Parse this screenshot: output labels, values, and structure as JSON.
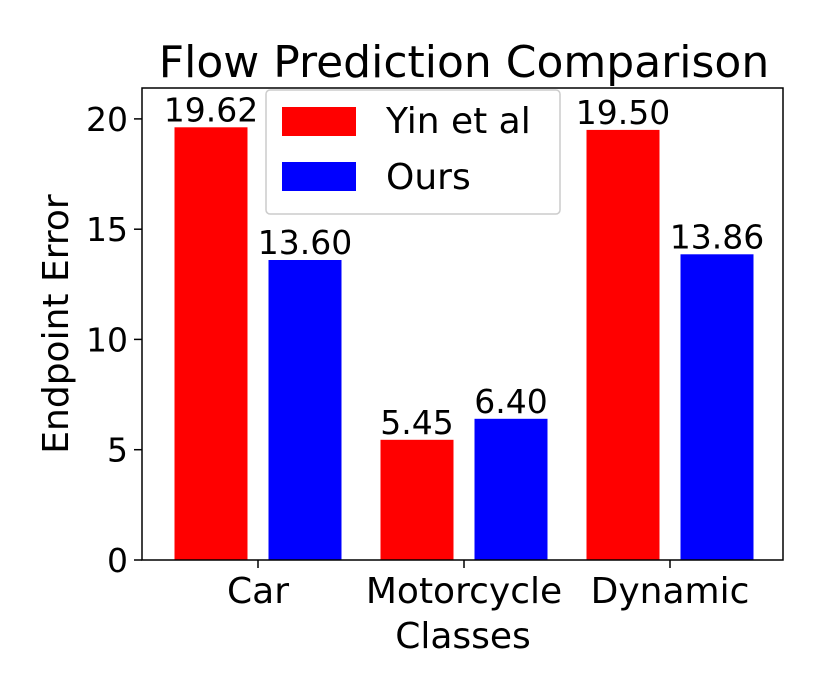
{
  "chart_data": {
    "type": "bar",
    "title": "Flow Prediction Comparison",
    "xlabel": "Classes",
    "ylabel": "Endpoint Error",
    "categories": [
      "Car",
      "Motorcycle",
      "Dynamic"
    ],
    "series": [
      {
        "name": "Yin et al",
        "color": "#ff0000",
        "values": [
          19.62,
          5.45,
          19.5
        ],
        "labels": [
          "19.62",
          "5.45",
          "19.50"
        ]
      },
      {
        "name": "Ours",
        "color": "#0000ff",
        "values": [
          13.6,
          6.4,
          13.86
        ],
        "labels": [
          "13.60",
          "6.40",
          "13.86"
        ]
      }
    ],
    "ylim": [
      0,
      21.4
    ],
    "yticks": [
      0,
      5,
      10,
      15,
      20
    ],
    "ytick_labels": [
      "0",
      "5",
      "10",
      "15",
      "20"
    ],
    "grid": false,
    "legend_position": "top-center"
  }
}
